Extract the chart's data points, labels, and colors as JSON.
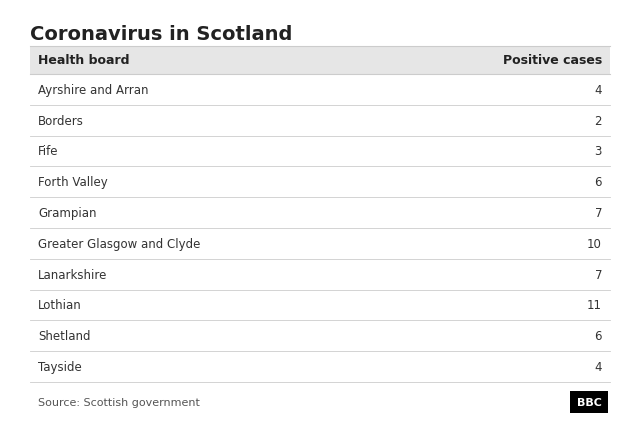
{
  "title": "Coronavirus in Scotland",
  "col1_header": "Health board",
  "col2_header": "Positive cases",
  "rows": [
    [
      "Ayrshire and Arran",
      "4"
    ],
    [
      "Borders",
      "2"
    ],
    [
      "Fife",
      "3"
    ],
    [
      "Forth Valley",
      "6"
    ],
    [
      "Grampian",
      "7"
    ],
    [
      "Greater Glasgow and Clyde",
      "10"
    ],
    [
      "Lanarkshire",
      "7"
    ],
    [
      "Lothian",
      "11"
    ],
    [
      "Shetland",
      "6"
    ],
    [
      "Tayside",
      "4"
    ]
  ],
  "source_text": "Source: Scottish government",
  "bbc_text": "BBC",
  "background_color": "#ffffff",
  "header_row_color": "#e6e6e6",
  "divider_color": "#cccccc",
  "title_color": "#222222",
  "header_text_color": "#222222",
  "row_text_color": "#333333",
  "source_color": "#555555",
  "bbc_box_color": "#000000",
  "bbc_text_color": "#ffffff",
  "title_fontsize": 14,
  "header_fontsize": 9,
  "row_fontsize": 8.5,
  "source_fontsize": 8
}
